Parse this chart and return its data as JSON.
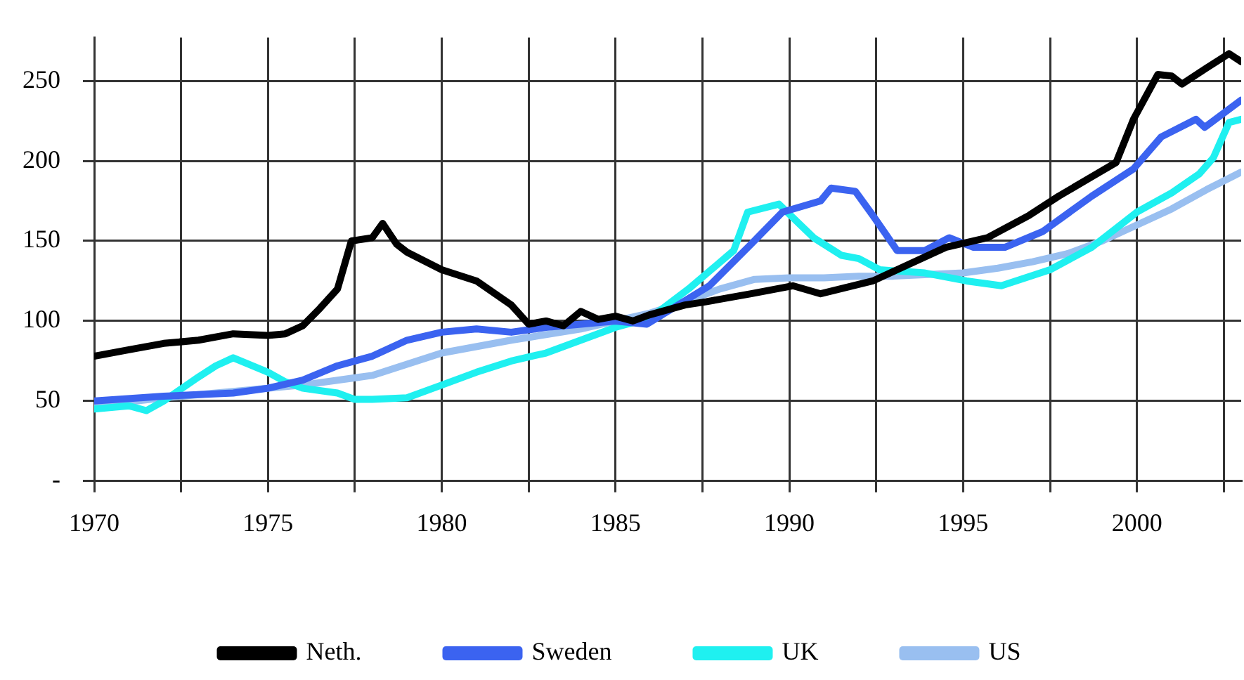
{
  "chart_data": {
    "type": "line",
    "xlim": [
      1970,
      2003
    ],
    "ylim": [
      0,
      277
    ],
    "xticks": [
      1970,
      {
        "value": 1972.5,
        "label": null
      },
      1975,
      {
        "value": 1977.5,
        "label": null
      },
      1980,
      {
        "value": 1982.5,
        "label": null
      },
      1985,
      {
        "value": 1987.5,
        "label": null
      },
      1990,
      {
        "value": 1992.5,
        "label": null
      },
      1995,
      {
        "value": 1997.5,
        "label": null
      },
      2000,
      {
        "value": 2002.5,
        "label": null
      }
    ],
    "yticks": [
      {
        "value": 0,
        "label": "-"
      },
      50,
      100,
      150,
      200,
      250
    ],
    "grid": true,
    "legend": "bottom",
    "marker": "none",
    "line_style": "solid",
    "series": [
      {
        "name": "Neth.",
        "color": "#000000",
        "x": [
          1970,
          1971,
          1972,
          1973,
          1974,
          1975,
          1975.5,
          1976,
          1976.5,
          1977,
          1977.4,
          1978,
          1978.3,
          1978.7,
          1979,
          1980,
          1981,
          1982,
          1982.5,
          1983,
          1983.5,
          1984,
          1984.5,
          1985,
          1985.5,
          1986,
          1987,
          1987.6,
          1988.9,
          1990.1,
          1990.9,
          1992.4,
          1993.1,
          1994.5,
          1995.7,
          1996.9,
          1997.75,
          1999.4,
          1999.9,
          2000.6,
          2001,
          2001.3,
          2002,
          2002.65,
          2003
        ],
        "values": [
          78,
          82,
          86,
          88,
          92,
          91,
          92,
          97,
          108,
          120,
          150,
          152,
          161,
          148,
          143,
          132,
          125,
          110,
          98,
          100,
          97,
          106,
          101,
          103,
          100,
          104,
          110,
          112,
          117,
          122,
          117,
          125,
          132,
          146,
          152,
          166,
          178,
          199,
          226,
          254,
          253,
          248,
          258,
          267,
          262
        ]
      },
      {
        "name": "Sweden",
        "color": "#3b63f0",
        "x": [
          1970,
          1972,
          1974,
          1975,
          1976,
          1977,
          1978,
          1979,
          1980,
          1981,
          1982,
          1983,
          1984,
          1985,
          1985.9,
          1987.7,
          1988.9,
          1989.8,
          1990.9,
          1991.2,
          1991.9,
          1992.4,
          1993.1,
          1993.9,
          1994.6,
          1995.3,
          1996.2,
          1997.3,
          1998.7,
          1999.9,
          2000.7,
          2001.7,
          2001.95,
          2003
        ],
        "values": [
          50,
          53,
          55,
          58,
          63,
          72,
          78,
          88,
          93,
          95,
          93,
          96,
          98,
          100,
          98,
          122,
          148,
          168,
          175,
          183,
          181,
          166,
          144,
          144,
          152,
          146,
          146,
          156,
          178,
          195,
          215,
          226,
          221,
          238
        ]
      },
      {
        "name": "UK",
        "color": "#1ff0f0",
        "x": [
          1970,
          1971,
          1971.5,
          1972,
          1973,
          1973.5,
          1974,
          1975,
          1975.5,
          1976,
          1977,
          1977.5,
          1978,
          1979,
          1980,
          1981,
          1982,
          1983,
          1984,
          1985,
          1986,
          1987.1,
          1988.4,
          1988.8,
          1989.7,
          1990.7,
          1991.5,
          1992,
          1992.6,
          1993.9,
          1995.1,
          1996.1,
          1997.5,
          1998.7,
          2000,
          2001,
          2001.8,
          2002.2,
          2002.65,
          2003
        ],
        "values": [
          45,
          47,
          44,
          50,
          65,
          72,
          77,
          68,
          62,
          58,
          55,
          51,
          51,
          52,
          60,
          68,
          75,
          80,
          88,
          96,
          102,
          120,
          144,
          168,
          173,
          152,
          141,
          139,
          132,
          130,
          125,
          122,
          132,
          146,
          168,
          180,
          192,
          202,
          224,
          226
        ]
      },
      {
        "name": "US",
        "color": "#99bff0",
        "x": [
          1970,
          1972,
          1974,
          1976,
          1978,
          1980,
          1982,
          1984,
          1985,
          1986,
          1987,
          1988,
          1989,
          1990,
          1991,
          1992,
          1993,
          1994,
          1995,
          1996,
          1997,
          1998,
          1999,
          2000,
          2001,
          2002,
          2003
        ],
        "values": [
          47,
          52,
          56,
          60,
          66,
          80,
          88,
          95,
          100,
          105,
          112,
          120,
          126,
          127,
          127,
          128,
          128,
          129,
          130,
          133,
          137,
          142,
          150,
          160,
          170,
          182,
          193
        ]
      }
    ]
  }
}
